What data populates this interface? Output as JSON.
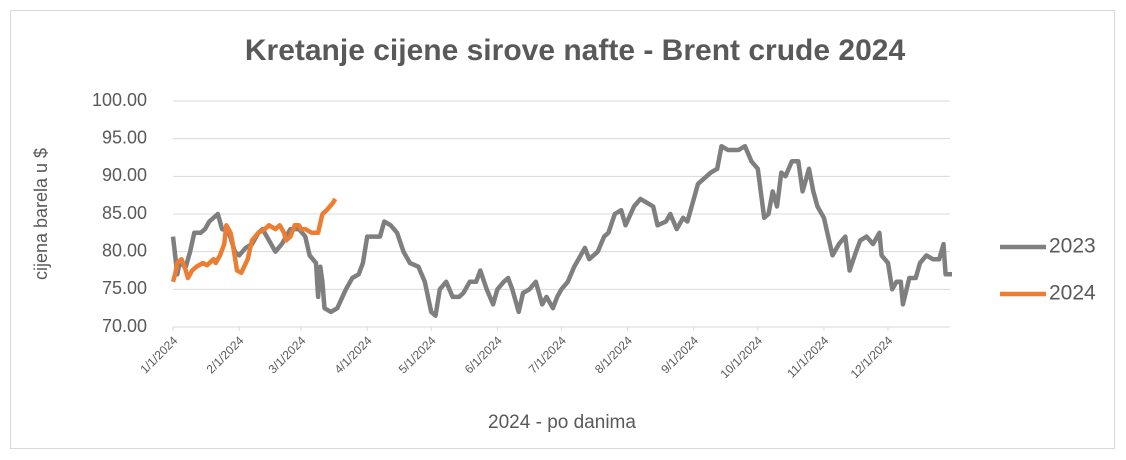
{
  "chart_data": {
    "type": "line",
    "title": "Kretanje cijene sirove nafte - Brent crude 2024",
    "y_label": "cijena barela u $",
    "x_label": "2024 - po danima",
    "xlim": [
      "1/1/2024",
      "12/31/2024"
    ],
    "xticks": [
      "1/1/2024",
      "2/1/2024",
      "3/1/2024",
      "4/1/2024",
      "5/1/2024",
      "6/1/2024",
      "7/1/2024",
      "8/1/2024",
      "9/1/2024",
      "10/1/2024",
      "11/1/2024",
      "12/1/2024"
    ],
    "ylim": [
      70,
      100
    ],
    "yticks": [
      {
        "value": 70,
        "label": "70.00"
      },
      {
        "value": 75,
        "label": "75.00"
      },
      {
        "value": 80,
        "label": "80.00"
      },
      {
        "value": 85,
        "label": "85.00"
      },
      {
        "value": 90,
        "label": "90.00"
      },
      {
        "value": 95,
        "label": "95.00"
      },
      {
        "value": 100,
        "label": "100.00"
      }
    ],
    "grid": true,
    "legend": "right",
    "series": [
      {
        "name": "2023",
        "color": "#7f7f7f",
        "x": [
          "1/1/2024",
          "1/3/2024",
          "1/4/2024",
          "1/7/2024",
          "1/9/2024",
          "1/11/2024",
          "1/14/2024",
          "1/16/2024",
          "1/18/2024",
          "1/22/2024",
          "1/24/2024",
          "1/27/2024",
          "1/30/2024",
          "2/1/2024",
          "2/4/2024",
          "2/7/2024",
          "2/10/2024",
          "2/12/2024",
          "2/15/2024",
          "2/18/2024",
          "2/21/2024",
          "2/25/2024",
          "2/29/2024",
          "3/3/2024",
          "3/5/2024",
          "3/8/2024",
          "3/9/2024",
          "3/10/2024",
          "3/11/2024",
          "3/12/2024",
          "3/15/2024",
          "3/18/2024",
          "3/22/2024",
          "3/25/2024",
          "3/28/2024",
          "3/30/2024",
          "4/1/2024",
          "4/3/2024",
          "4/7/2024",
          "4/9/2024",
          "4/12/2024",
          "4/15/2024",
          "4/18/2024",
          "4/21/2024",
          "4/25/2024",
          "4/28/2024",
          "5/1/2024",
          "5/3/2024",
          "5/5/2024",
          "5/8/2024",
          "5/11/2024",
          "5/14/2024",
          "5/16/2024",
          "5/19/2024",
          "5/22/2024",
          "5/24/2024",
          "5/27/2024",
          "5/30/2024",
          "6/1/2024",
          "6/4/2024",
          "6/6/2024",
          "6/8/2024",
          "6/11/2024",
          "6/13/2024",
          "6/16/2024",
          "6/19/2024",
          "6/22/2024",
          "6/24/2024",
          "6/27/2024",
          "6/29/2024",
          "7/1/2024",
          "7/4/2024",
          "7/7/2024",
          "7/9/2024",
          "7/12/2024",
          "7/14/2024",
          "7/18/2024",
          "7/21/2024",
          "7/23/2024",
          "7/26/2024",
          "7/29/2024",
          "7/31/2024",
          "8/4/2024",
          "8/7/2024",
          "8/10/2024",
          "8/13/2024",
          "8/15/2024",
          "8/19/2024",
          "8/21/2024",
          "8/24/2024",
          "8/27/2024",
          "8/29/2024",
          "9/1/2024",
          "9/3/2024",
          "9/5/2024",
          "9/9/2024",
          "9/12/2024",
          "9/14/2024",
          "9/17/2024",
          "9/20/2024",
          "9/22/2024",
          "9/25/2024",
          "9/28/2024",
          "10/1/2024",
          "10/4/2024",
          "10/6/2024",
          "10/8/2024",
          "10/10/2024",
          "10/12/2024",
          "10/14/2024",
          "10/17/2024",
          "10/20/2024",
          "10/22/2024",
          "10/25/2024",
          "10/27/2024",
          "10/29/2024",
          "11/1/2024",
          "11/3/2024",
          "11/5/2024",
          "11/8/2024",
          "11/11/2024",
          "11/13/2024",
          "11/16/2024",
          "11/18/2024",
          "11/21/2024",
          "11/24/2024",
          "11/27/2024",
          "11/28/2024",
          "12/1/2024",
          "12/3/2024",
          "12/5/2024",
          "12/7/2024",
          "12/8/2024",
          "12/11/2024",
          "12/14/2024",
          "12/16/2024",
          "12/19/2024",
          "12/22/2024",
          "12/25/2024",
          "12/27/2024",
          "12/28/2024",
          "12/31/2024"
        ],
        "values": [
          82,
          77,
          78.5,
          78,
          80,
          82.5,
          82.5,
          83,
          84,
          85,
          83,
          82.7,
          80,
          79.5,
          80.5,
          81,
          82.5,
          83,
          81.5,
          80,
          81,
          83,
          83,
          82,
          79.5,
          78.5,
          74,
          78,
          76,
          72.5,
          72,
          72.5,
          75,
          76.5,
          77,
          78.5,
          82,
          82,
          82,
          84,
          83.5,
          82.5,
          80,
          78.5,
          78,
          76,
          72,
          71.5,
          75,
          76,
          74,
          74,
          74.5,
          76,
          76,
          77.5,
          75,
          73,
          75,
          76,
          76.5,
          75,
          72,
          74.5,
          75,
          76,
          73,
          74,
          72.5,
          74,
          75,
          76,
          78,
          79,
          80.5,
          79,
          80,
          82,
          82.5,
          85,
          85.5,
          83.5,
          86,
          87,
          86.5,
          86,
          83.5,
          84,
          85,
          83,
          84.5,
          84,
          87,
          89,
          89.5,
          90.5,
          91,
          94,
          93.5,
          93.5,
          93.5,
          94,
          92,
          91,
          84.5,
          85,
          88,
          86,
          90.5,
          90,
          92,
          92,
          88,
          91,
          88,
          86,
          84.5,
          82,
          79.5,
          81,
          82,
          77.5,
          80,
          81.5,
          82,
          81,
          82.5,
          79.5,
          78.5,
          75,
          76,
          76,
          73,
          76.5,
          76.5,
          78.5,
          79.5,
          79,
          79,
          81,
          77,
          77
        ]
      },
      {
        "name": "2024",
        "color": "#ed7d31",
        "x": [
          "1/1/2024",
          "1/2/2024",
          "1/3/2024",
          "1/5/2024",
          "1/7/2024",
          "1/8/2024",
          "1/10/2024",
          "1/12/2024",
          "1/15/2024",
          "1/17/2024",
          "1/20/2024",
          "1/21/2024",
          "1/23/2024",
          "1/25/2024",
          "1/26/2024",
          "1/28/2024",
          "1/29/2024",
          "1/31/2024",
          "2/2/2024",
          "2/5/2024",
          "2/7/2024",
          "2/10/2024",
          "2/13/2024",
          "2/15/2024",
          "2/18/2024",
          "2/20/2024",
          "2/22/2024",
          "2/23/2024",
          "2/25/2024",
          "2/27/2024",
          "2/29/2024",
          "3/1/2024",
          "3/3/2024",
          "3/6/2024",
          "3/9/2024",
          "3/11/2024",
          "3/13/2024",
          "3/16/2024",
          "3/17/2024"
        ],
        "values": [
          76,
          77,
          78.5,
          79,
          77.5,
          76.5,
          77.5,
          78,
          78.5,
          78.2,
          79,
          78.5,
          79.5,
          81,
          83.5,
          82.5,
          81,
          77.5,
          77.2,
          79,
          81.5,
          82.5,
          83,
          83.5,
          83,
          83.5,
          82.5,
          81.5,
          82,
          83.5,
          83.5,
          83,
          83,
          82.5,
          82.5,
          85,
          85.5,
          86.5,
          87
        ]
      }
    ]
  }
}
